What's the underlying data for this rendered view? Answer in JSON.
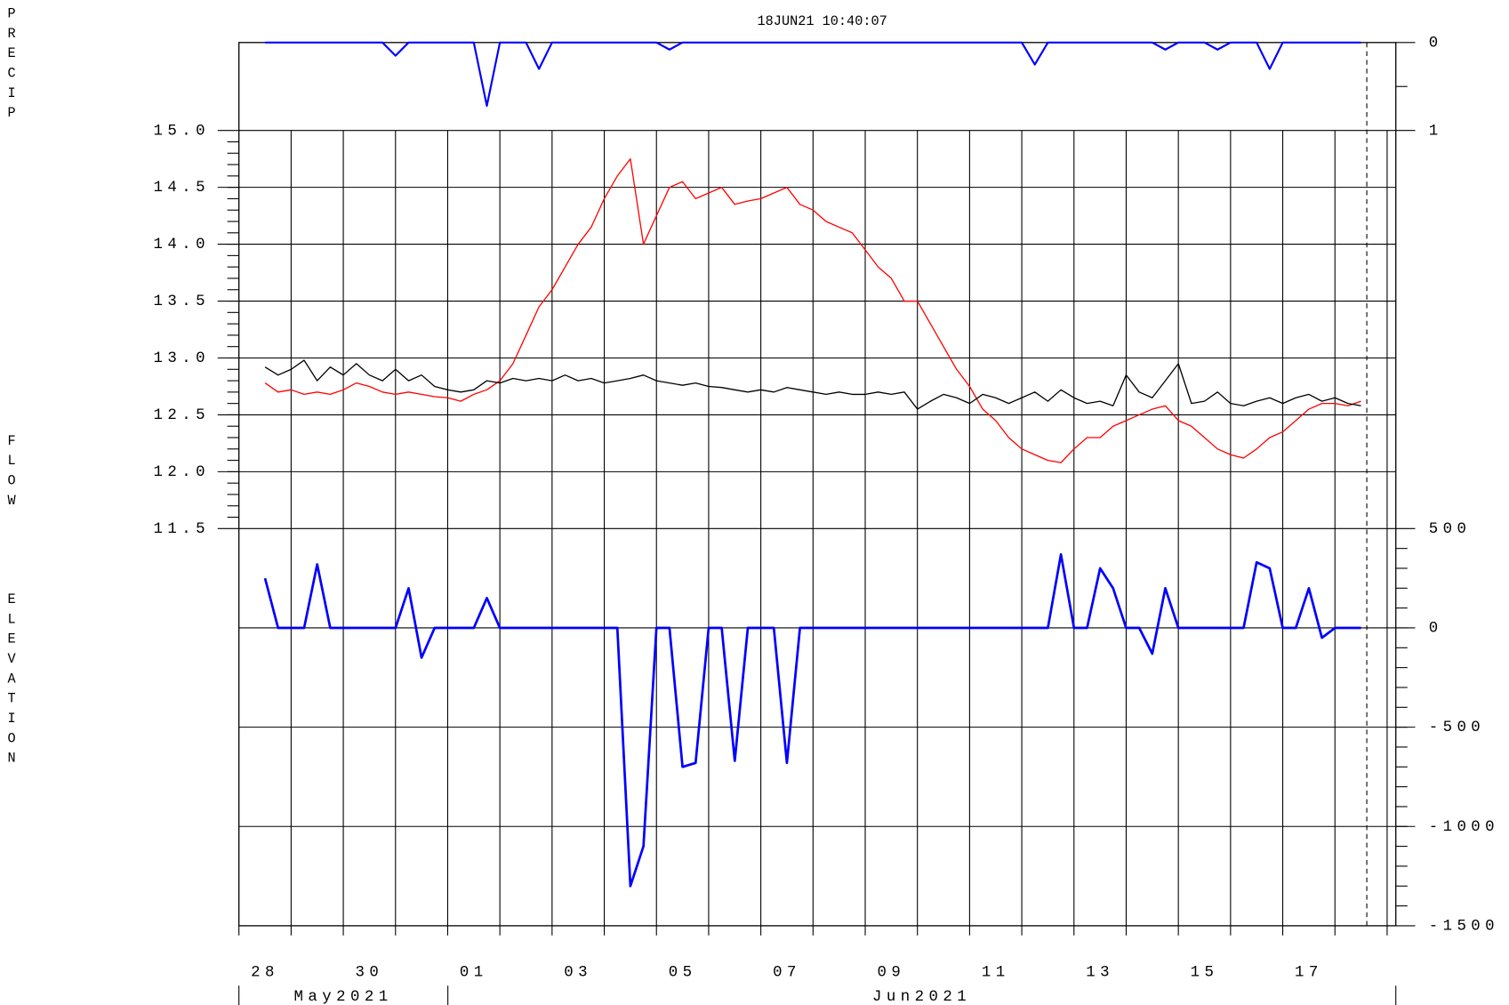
{
  "chart_data": {
    "type": "line",
    "title": "18JUN21  10:40:07",
    "y3label": "PRECIP",
    "y2label": "FLOW",
    "ylabel": "ELEVATION",
    "x": [
      "2021-05-28T12:00",
      "2021-05-28T18:00",
      "2021-05-29T00:00",
      "2021-05-29T06:00",
      "2021-05-29T12:00",
      "2021-05-29T18:00",
      "2021-05-30T00:00",
      "2021-05-30T06:00",
      "2021-05-30T12:00",
      "2021-05-30T18:00",
      "2021-05-31T00:00",
      "2021-05-31T06:00",
      "2021-05-31T12:00",
      "2021-05-31T18:00",
      "2021-06-01T00:00",
      "2021-06-01T06:00",
      "2021-06-01T12:00",
      "2021-06-01T18:00",
      "2021-06-02T00:00",
      "2021-06-02T06:00",
      "2021-06-02T12:00",
      "2021-06-02T18:00",
      "2021-06-03T00:00",
      "2021-06-03T06:00",
      "2021-06-03T12:00",
      "2021-06-03T18:00",
      "2021-06-04T00:00",
      "2021-06-04T06:00",
      "2021-06-04T12:00",
      "2021-06-04T18:00",
      "2021-06-05T00:00",
      "2021-06-05T06:00",
      "2021-06-05T12:00",
      "2021-06-05T18:00",
      "2021-06-06T00:00",
      "2021-06-06T06:00",
      "2021-06-06T12:00",
      "2021-06-06T18:00",
      "2021-06-07T00:00",
      "2021-06-07T06:00",
      "2021-06-07T12:00",
      "2021-06-07T18:00",
      "2021-06-08T00:00",
      "2021-06-08T06:00",
      "2021-06-08T12:00",
      "2021-06-08T18:00",
      "2021-06-09T00:00",
      "2021-06-09T06:00",
      "2021-06-09T12:00",
      "2021-06-09T18:00",
      "2021-06-10T00:00",
      "2021-06-10T06:00",
      "2021-06-10T12:00",
      "2021-06-10T18:00",
      "2021-06-11T00:00",
      "2021-06-11T06:00",
      "2021-06-11T12:00",
      "2021-06-11T18:00",
      "2021-06-12T00:00",
      "2021-06-12T06:00",
      "2021-06-12T12:00",
      "2021-06-12T18:00",
      "2021-06-13T00:00",
      "2021-06-13T06:00",
      "2021-06-13T12:00",
      "2021-06-13T18:00",
      "2021-06-14T00:00",
      "2021-06-14T06:00",
      "2021-06-14T12:00",
      "2021-06-14T18:00",
      "2021-06-15T00:00",
      "2021-06-15T06:00",
      "2021-06-15T12:00",
      "2021-06-15T18:00",
      "2021-06-16T00:00",
      "2021-06-16T06:00",
      "2021-06-16T12:00",
      "2021-06-16T18:00",
      "2021-06-17T00:00",
      "2021-06-17T06:00",
      "2021-06-17T12:00",
      "2021-06-17T18:00",
      "2021-06-18T00:00",
      "2021-06-18T06:00",
      "2021-06-18T12:00"
    ],
    "xlim": [
      "2021-05-28T00:00",
      "2021-06-19T04:00"
    ],
    "xticks": [
      {
        "value": "2021-05-28",
        "label": "28"
      },
      "2021-05-29",
      {
        "value": "2021-05-30",
        "label": "30"
      },
      "2021-05-31",
      {
        "value": "2021-06-01",
        "label": "01"
      },
      "2021-06-02",
      {
        "value": "2021-06-03",
        "label": "03"
      },
      "2021-06-04",
      {
        "value": "2021-06-05",
        "label": "05"
      },
      "2021-06-06",
      {
        "value": "2021-06-07",
        "label": "07"
      },
      "2021-06-08",
      {
        "value": "2021-06-09",
        "label": "09"
      },
      "2021-06-10",
      {
        "value": "2021-06-11",
        "label": "11"
      },
      "2021-06-12",
      {
        "value": "2021-06-13",
        "label": "13"
      },
      "2021-06-14",
      {
        "value": "2021-06-15",
        "label": "15"
      },
      "2021-06-16",
      {
        "value": "2021-06-17",
        "label": "17"
      },
      "2021-06-18",
      "2021-06-19"
    ],
    "month_ticks": [
      {
        "value": "2021-05-28",
        "label": "May2021"
      },
      {
        "value": "2021-06-01",
        "label": "Jun2021"
      }
    ],
    "ylim": [
      11.5,
      15.0
    ],
    "yticks": [
      11.5,
      {
        "value": 12,
        "label": "12.0"
      },
      12.5,
      {
        "value": 13,
        "label": "13.0"
      },
      13.5,
      {
        "value": 14,
        "label": "14.0"
      },
      14.5,
      {
        "value": 15,
        "label": "15.0"
      }
    ],
    "y2lim": [
      -1500,
      500
    ],
    "y2ticks": [
      500,
      0,
      -500,
      -1000,
      -1500
    ],
    "y3lim": [
      0,
      1
    ],
    "y3ticks": [
      0,
      1
    ],
    "series": [
      {
        "color": "#0000ff",
        "axis": "y3",
        "values": [
          0,
          0,
          0,
          0,
          0,
          0,
          0,
          0,
          0,
          0,
          0.15,
          0,
          0,
          0,
          0,
          0,
          0,
          0.72,
          0,
          0,
          0,
          0.3,
          0,
          0,
          0,
          0,
          0,
          0,
          0,
          0,
          0,
          0.08,
          0,
          0,
          0,
          0,
          0,
          0,
          0,
          0,
          0,
          0,
          0,
          0,
          0,
          0,
          0,
          0,
          0,
          0,
          0,
          0,
          0,
          0,
          0,
          0,
          0,
          0,
          0,
          0.25,
          0,
          0,
          0,
          0,
          0,
          0,
          0,
          0,
          0,
          0.08,
          0,
          0,
          0,
          0.08,
          0,
          0,
          0,
          0.3,
          0,
          0,
          0,
          0,
          0,
          0,
          0
        ]
      },
      {
        "color": "#ff0000",
        "axis": "y",
        "values": [
          12.78,
          12.7,
          12.72,
          12.68,
          12.7,
          12.68,
          12.72,
          12.78,
          12.75,
          12.7,
          12.68,
          12.7,
          12.68,
          12.66,
          12.65,
          12.62,
          12.68,
          12.72,
          12.8,
          12.95,
          13.2,
          13.45,
          13.6,
          13.8,
          14.0,
          14.15,
          14.4,
          14.6,
          14.75,
          14.0,
          14.25,
          14.5,
          14.55,
          14.4,
          14.45,
          14.5,
          14.35,
          14.38,
          14.4,
          14.45,
          14.5,
          14.35,
          14.3,
          14.2,
          14.15,
          14.1,
          13.95,
          13.8,
          13.7,
          13.5,
          13.5,
          13.3,
          13.1,
          12.9,
          12.75,
          12.55,
          12.45,
          12.3,
          12.2,
          12.15,
          12.1,
          12.08,
          12.2,
          12.3,
          12.3,
          12.4,
          12.45,
          12.5,
          12.55,
          12.58,
          12.45,
          12.4,
          12.3,
          12.2,
          12.15,
          12.12,
          12.2,
          12.3,
          12.35,
          12.45,
          12.55,
          12.6,
          12.6,
          12.58,
          12.62
        ]
      },
      {
        "color": "#000000",
        "axis": "y",
        "values": [
          12.92,
          12.85,
          12.9,
          12.98,
          12.8,
          12.92,
          12.85,
          12.95,
          12.85,
          12.8,
          12.9,
          12.8,
          12.85,
          12.75,
          12.72,
          12.7,
          12.72,
          12.8,
          12.78,
          12.82,
          12.8,
          12.82,
          12.8,
          12.85,
          12.8,
          12.82,
          12.78,
          12.8,
          12.82,
          12.85,
          12.8,
          12.78,
          12.76,
          12.78,
          12.75,
          12.74,
          12.72,
          12.7,
          12.72,
          12.7,
          12.74,
          12.72,
          12.7,
          12.68,
          12.7,
          12.68,
          12.68,
          12.7,
          12.68,
          12.7,
          12.55,
          12.62,
          12.68,
          12.65,
          12.6,
          12.68,
          12.65,
          12.6,
          12.65,
          12.7,
          12.62,
          12.72,
          12.65,
          12.6,
          12.62,
          12.58,
          12.85,
          12.7,
          12.65,
          12.8,
          12.95,
          12.6,
          12.62,
          12.7,
          12.6,
          12.58,
          12.62,
          12.65,
          12.6,
          12.65,
          12.68,
          12.62,
          12.65,
          12.6,
          12.58
        ]
      },
      {
        "color": "#0000ff",
        "axis": "y2",
        "values": [
          250,
          0,
          0,
          0,
          320,
          0,
          0,
          0,
          0,
          0,
          0,
          200,
          -150,
          0,
          0,
          0,
          0,
          150,
          0,
          0,
          0,
          0,
          0,
          0,
          0,
          0,
          0,
          0,
          -1300,
          -1100,
          0,
          0,
          -700,
          -680,
          0,
          0,
          -670,
          0,
          0,
          0,
          -680,
          0,
          0,
          0,
          0,
          0,
          0,
          0,
          0,
          0,
          0,
          0,
          0,
          0,
          0,
          0,
          0,
          0,
          0,
          0,
          0,
          370,
          0,
          0,
          300,
          200,
          0,
          0,
          -130,
          200,
          0,
          0,
          0,
          0,
          0,
          0,
          330,
          300,
          0,
          0,
          200,
          -50,
          0,
          0,
          0
        ]
      }
    ]
  }
}
